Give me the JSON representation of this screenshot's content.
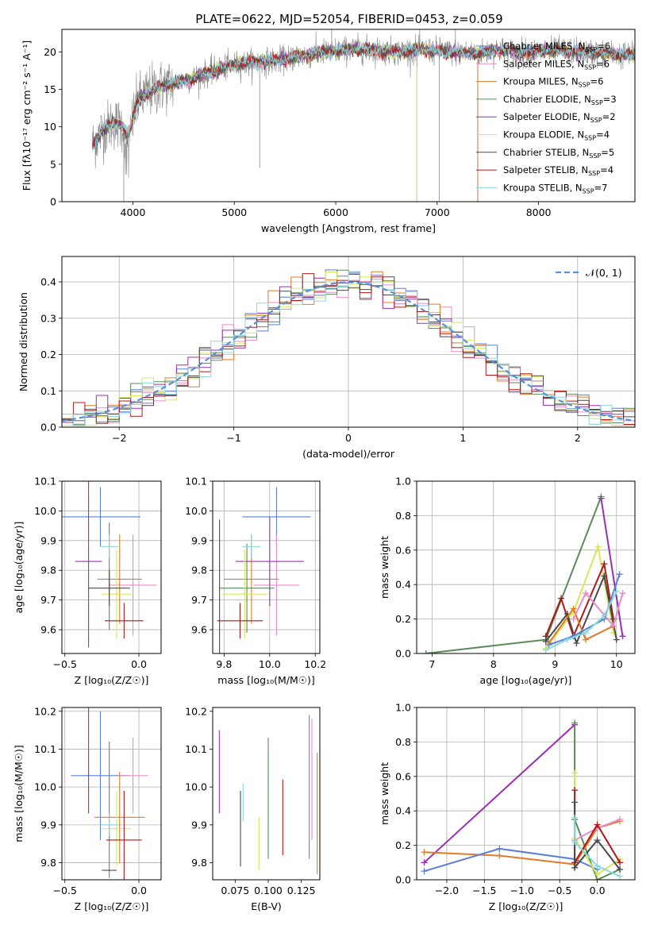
{
  "colors": {
    "chabrier_miles": "#5b7fd6",
    "salpeter_miles": "#e88cc8",
    "kroupa_miles": "#e07b28",
    "chabrier_elodie": "#5a8a5a",
    "salpeter_elodie": "#9a2eb5",
    "kroupa_elodie": "#d7e85a",
    "chabrier_stelib": "#4a4a4a",
    "salpeter_stelib": "#b01818",
    "kroupa_stelib": "#8ad8dc",
    "data_spectrum": "#888888",
    "normal_curve": "#5b8fd6",
    "grid": "#b0b0b0"
  },
  "figure": {
    "title": "PLATE=0622, MJD=52054, FIBERID=0453, z=0.059"
  },
  "chart_data": [
    {
      "id": "spectrum",
      "type": "line",
      "title": "PLATE=0622, MJD=52054, FIBERID=0453, z=0.059",
      "xlabel": "wavelength [Angstrom, rest frame]",
      "ylabel": "Flux [fλ10⁻¹⁷ erg cm⁻² s⁻¹ A⁻¹]",
      "xlim": [
        3300,
        8950
      ],
      "ylim": [
        0,
        23
      ],
      "xticks": [
        4000,
        5000,
        6000,
        7000,
        8000
      ],
      "yticks": [
        0,
        5,
        10,
        15,
        20
      ],
      "grid": false,
      "legend_position": "right",
      "continuum": {
        "x": [
          3600,
          3700,
          3800,
          3900,
          3950,
          4050,
          4200,
          4400,
          4600,
          4800,
          5000,
          5200,
          5400,
          5600,
          5800,
          6000,
          6200,
          6400,
          6600,
          6800,
          7000,
          7200,
          7400,
          7600,
          7800,
          8000,
          8200,
          8400,
          8600,
          8800,
          8950
        ],
        "y": [
          7.5,
          9.5,
          10.5,
          10.2,
          8.5,
          13.5,
          15.0,
          15.8,
          16.5,
          17.5,
          18.3,
          18.6,
          18.8,
          19.3,
          19.8,
          20.1,
          20.4,
          20.2,
          20.0,
          20.3,
          20.1,
          19.9,
          19.8,
          20.3,
          19.9,
          20.0,
          20.2,
          20.0,
          19.8,
          19.6,
          19.5
        ]
      },
      "legend": [
        {
          "label": "Chabrier MILES, N",
          "nssp": "6",
          "color_key": "chabrier_miles"
        },
        {
          "label": "Salpeter MILES, N",
          "nssp": "6",
          "color_key": "salpeter_miles"
        },
        {
          "label": "Kroupa MILES, N",
          "nssp": "6",
          "color_key": "kroupa_miles"
        },
        {
          "label": "Chabrier ELODIE, N",
          "nssp": "3",
          "color_key": "chabrier_elodie"
        },
        {
          "label": "Salpeter ELODIE, N",
          "nssp": "2",
          "color_key": "salpeter_elodie"
        },
        {
          "label": "Kroupa ELODIE, N",
          "nssp": "4",
          "color_key": "kroupa_elodie"
        },
        {
          "label": "Chabrier STELIB, N",
          "nssp": "5",
          "color_key": "chabrier_stelib"
        },
        {
          "label": "Salpeter STELIB, N",
          "nssp": "4",
          "color_key": "salpeter_stelib"
        },
        {
          "label": "Kroupa STELIB, N",
          "nssp": "7",
          "color_key": "kroupa_stelib"
        }
      ],
      "legend_subscript": "SSP"
    },
    {
      "id": "residuals",
      "type": "histogram",
      "xlabel": "(data-model)/error",
      "ylabel": "Normed distribution",
      "xlim": [
        -2.5,
        2.5
      ],
      "ylim": [
        0,
        0.47
      ],
      "xticks": [
        -2,
        -1,
        0,
        1,
        2
      ],
      "yticks": [
        0.0,
        0.1,
        0.2,
        0.3,
        0.4
      ],
      "grid": true,
      "legend": [
        {
          "label": "𝒩(0, 1)",
          "color_key": "normal_curve",
          "style": "dashed"
        }
      ],
      "legend_position": "top-right",
      "bin_width": 0.1
    },
    {
      "id": "age_vs_Z",
      "type": "scatter",
      "xlabel": "Z [log₁₀(Z/Z☉)]",
      "ylabel": "age  [log₁₀(age/yr)]",
      "xlim": [
        -0.52,
        0.15
      ],
      "ylim": [
        9.52,
        10.1
      ],
      "xticks": [
        -0.5,
        0.0
      ],
      "yticks": [
        9.6,
        9.7,
        9.8,
        9.9,
        10.0,
        10.1
      ],
      "grid": true,
      "points": [
        {
          "color_key": "chabrier_miles",
          "x": -0.26,
          "y": 9.98,
          "xerr": 0.27,
          "yerr": 0.1
        },
        {
          "color_key": "salpeter_miles",
          "x": -0.04,
          "y": 9.75,
          "xerr": 0.16,
          "yerr": 0.17
        },
        {
          "color_key": "kroupa_miles",
          "x": -0.13,
          "y": 9.77,
          "xerr": 0.15,
          "yerr": 0.15
        },
        {
          "color_key": "chabrier_elodie",
          "x": -0.2,
          "y": 9.78,
          "xerr": 0.0,
          "yerr": 0.18
        },
        {
          "color_key": "salpeter_elodie",
          "x": -0.34,
          "y": 9.83,
          "xerr": 0.09,
          "yerr": 0.29
        },
        {
          "color_key": "kroupa_elodie",
          "x": -0.15,
          "y": 9.72,
          "xerr": 0.1,
          "yerr": 0.15
        },
        {
          "color_key": "chabrier_stelib",
          "x": -0.2,
          "y": 9.74,
          "xerr": 0.14,
          "yerr": 0.06
        },
        {
          "color_key": "salpeter_stelib",
          "x": -0.1,
          "y": 9.63,
          "xerr": 0.13,
          "yerr": 0.06
        },
        {
          "color_key": "kroupa_stelib",
          "x": -0.2,
          "y": 9.88,
          "xerr": 0.06,
          "yerr": 0.04
        }
      ]
    },
    {
      "id": "age_vs_mass",
      "type": "scatter",
      "xlabel": "mass [log₁₀(M/M☉)]",
      "ylabel": "",
      "xlim": [
        9.75,
        10.22
      ],
      "ylim": [
        9.52,
        10.1
      ],
      "xticks": [
        9.8,
        10.0,
        10.2
      ],
      "yticks": [
        9.6,
        9.7,
        9.8,
        9.9,
        10.0,
        10.1
      ],
      "grid": true,
      "points": [
        {
          "color_key": "chabrier_miles",
          "x": 10.03,
          "y": 9.98,
          "xerr": 0.15,
          "yerr": 0.1
        },
        {
          "color_key": "salpeter_miles",
          "x": 10.03,
          "y": 9.75,
          "xerr": 0.1,
          "yerr": 0.17
        },
        {
          "color_key": "kroupa_miles",
          "x": 9.92,
          "y": 9.77,
          "xerr": 0.12,
          "yerr": 0.15
        },
        {
          "color_key": "chabrier_elodie",
          "x": 9.9,
          "y": 9.74,
          "xerr": 0.12,
          "yerr": 0.15
        },
        {
          "color_key": "salpeter_elodie",
          "x": 10.0,
          "y": 9.83,
          "xerr": 0.15,
          "yerr": 0.15
        },
        {
          "color_key": "kroupa_elodie",
          "x": 9.89,
          "y": 9.72,
          "xerr": 0.1,
          "yerr": 0.15
        },
        {
          "color_key": "chabrier_stelib",
          "x": 9.78,
          "y": 9.67,
          "xerr": 0.0,
          "yerr": 0.3
        },
        {
          "color_key": "salpeter_stelib",
          "x": 9.87,
          "y": 9.63,
          "xerr": 0.1,
          "yerr": 0.06
        },
        {
          "color_key": "kroupa_stelib",
          "x": 9.92,
          "y": 9.88,
          "xerr": 0.04,
          "yerr": 0.04
        }
      ]
    },
    {
      "id": "weight_vs_age",
      "type": "line",
      "xlabel": "age  [log₁₀(age/yr)]",
      "ylabel": "mass weight",
      "xlim": [
        6.75,
        10.3
      ],
      "ylim": [
        0,
        1.0
      ],
      "xticks": [
        7,
        8,
        9,
        10
      ],
      "yticks": [
        0.0,
        0.2,
        0.4,
        0.6,
        0.8,
        1.0
      ],
      "grid": true,
      "series": [
        {
          "color_key": "chabrier_elodie",
          "x": [
            6.9,
            8.85,
            9.75
          ],
          "y": [
            0.0,
            0.08,
            0.91
          ]
        },
        {
          "color_key": "salpeter_elodie",
          "x": [
            9.75,
            10.1
          ],
          "y": [
            0.9,
            0.1
          ]
        },
        {
          "color_key": "kroupa_elodie",
          "x": [
            8.85,
            9.3,
            9.7,
            9.95
          ],
          "y": [
            0.03,
            0.24,
            0.62,
            0.12
          ]
        },
        {
          "color_key": "salpeter_stelib",
          "x": [
            8.85,
            9.1,
            9.3,
            9.8,
            9.95
          ],
          "y": [
            0.1,
            0.32,
            0.1,
            0.52,
            0.2
          ]
        },
        {
          "color_key": "chabrier_stelib",
          "x": [
            8.85,
            9.2,
            9.35,
            9.8,
            10.0
          ],
          "y": [
            0.07,
            0.23,
            0.06,
            0.45,
            0.08
          ]
        },
        {
          "color_key": "kroupa_miles",
          "x": [
            8.9,
            9.3,
            9.5,
            9.95
          ],
          "y": [
            0.06,
            0.26,
            0.08,
            0.16
          ]
        },
        {
          "color_key": "salpeter_miles",
          "x": [
            9.3,
            9.5,
            9.95,
            10.1
          ],
          "y": [
            0.2,
            0.35,
            0.16,
            0.35
          ]
        },
        {
          "color_key": "chabrier_miles",
          "x": [
            8.9,
            9.3,
            9.8,
            10.05
          ],
          "y": [
            0.05,
            0.1,
            0.2,
            0.46
          ]
        },
        {
          "color_key": "kroupa_stelib",
          "x": [
            8.85,
            9.2,
            9.5,
            9.8,
            10.0
          ],
          "y": [
            0.02,
            0.08,
            0.12,
            0.22,
            0.36
          ]
        }
      ]
    },
    {
      "id": "mass_vs_Z",
      "type": "scatter",
      "xlabel": "Z [log₁₀(Z/Z☉)]",
      "ylabel": "mass [log₁₀(M/M☉)]",
      "xlim": [
        -0.52,
        0.15
      ],
      "ylim": [
        9.755,
        10.21
      ],
      "xticks": [
        -0.5,
        0.0
      ],
      "yticks": [
        9.8,
        9.9,
        10.0,
        10.1,
        10.2
      ],
      "grid": true,
      "points": [
        {
          "color_key": "chabrier_miles",
          "x": -0.26,
          "y": 10.03,
          "xerr": 0.2,
          "yerr": 0.17
        },
        {
          "color_key": "salpeter_miles",
          "x": -0.04,
          "y": 10.03,
          "xerr": 0.1,
          "yerr": 0.1
        },
        {
          "color_key": "kroupa_miles",
          "x": -0.13,
          "y": 9.92,
          "xerr": 0.17,
          "yerr": 0.12
        },
        {
          "color_key": "chabrier_elodie",
          "x": -0.2,
          "y": 9.94,
          "xerr": 0.0,
          "yerr": 0.18
        },
        {
          "color_key": "salpeter_elodie",
          "x": -0.34,
          "y": 10.15,
          "xerr": 0.0,
          "yerr": 0.22
        },
        {
          "color_key": "kroupa_elodie",
          "x": -0.15,
          "y": 9.89,
          "xerr": 0.1,
          "yerr": 0.1
        },
        {
          "color_key": "chabrier_stelib",
          "x": -0.2,
          "y": 9.78,
          "xerr": 0.05,
          "yerr": 0.0
        },
        {
          "color_key": "salpeter_stelib",
          "x": -0.1,
          "y": 9.86,
          "xerr": 0.12,
          "yerr": 0.13
        },
        {
          "color_key": "kroupa_stelib",
          "x": -0.2,
          "y": 9.9,
          "xerr": 0.06,
          "yerr": 0.03
        }
      ]
    },
    {
      "id": "mass_vs_ebv",
      "type": "scatter",
      "xlabel": "E(B-V)",
      "ylabel": "",
      "xlim": [
        0.058,
        0.139
      ],
      "ylim": [
        9.755,
        10.21
      ],
      "xticks": [
        0.075,
        0.1,
        0.125
      ],
      "xtick_labels": [
        "0.075",
        "0.100",
        "0.125"
      ],
      "yticks": [
        9.8,
        9.9,
        10.0,
        10.1,
        10.2
      ],
      "grid": false,
      "points": [
        {
          "color_key": "salpeter_elodie",
          "x": 0.063,
          "y": 10.04,
          "yerr": 0.11
        },
        {
          "color_key": "chabrier_stelib",
          "x": 0.079,
          "y": 9.89,
          "yerr": 0.1
        },
        {
          "color_key": "kroupa_stelib",
          "x": 0.081,
          "y": 9.96,
          "yerr": 0.05
        },
        {
          "color_key": "kroupa_elodie",
          "x": 0.093,
          "y": 9.85,
          "yerr": 0.07
        },
        {
          "color_key": "chabrier_elodie",
          "x": 0.1,
          "y": 9.97,
          "yerr": 0.16
        },
        {
          "color_key": "salpeter_stelib",
          "x": 0.111,
          "y": 9.92,
          "yerr": 0.1
        },
        {
          "color_key": "chabrier_miles",
          "x": 0.131,
          "y": 10.0,
          "yerr": 0.19
        },
        {
          "color_key": "salpeter_miles",
          "x": 0.133,
          "y": 10.02,
          "yerr": 0.16
        },
        {
          "color_key": "kroupa_miles",
          "x": 0.137,
          "y": 9.93,
          "yerr": 0.16
        }
      ]
    },
    {
      "id": "weight_vs_Z",
      "type": "line",
      "xlabel": "Z [log₁₀(Z/Z☉)]",
      "ylabel": "mass weight",
      "xlim": [
        -2.4,
        0.5
      ],
      "ylim": [
        0,
        1.0
      ],
      "xticks": [
        -2.0,
        -1.5,
        -1.0,
        -0.5,
        0.0
      ],
      "yticks": [
        0.0,
        0.2,
        0.4,
        0.6,
        0.8,
        1.0
      ],
      "grid": true,
      "series": [
        {
          "color_key": "salpeter_elodie",
          "x": [
            -2.3,
            -0.3
          ],
          "y": [
            0.1,
            0.9
          ]
        },
        {
          "color_key": "chabrier_elodie",
          "x": [
            -0.3,
            -0.3,
            0.0,
            0.3
          ],
          "y": [
            0.91,
            0.35,
            0.0,
            0.06
          ]
        },
        {
          "color_key": "kroupa_miles",
          "x": [
            -2.3,
            -1.3,
            -0.3,
            0.0,
            0.3
          ],
          "y": [
            0.16,
            0.14,
            0.09,
            0.3,
            0.34
          ]
        },
        {
          "color_key": "chabrier_miles",
          "x": [
            -2.3,
            -1.3,
            -0.3,
            0.0
          ],
          "y": [
            0.05,
            0.18,
            0.12,
            0.06
          ]
        },
        {
          "color_key": "salpeter_miles",
          "x": [
            -0.3,
            0.0,
            0.3
          ],
          "y": [
            0.23,
            0.3,
            0.35
          ]
        },
        {
          "color_key": "kroupa_elodie",
          "x": [
            -0.3,
            -0.3,
            0.0,
            0.3
          ],
          "y": [
            0.62,
            0.24,
            0.03,
            0.12
          ]
        },
        {
          "color_key": "salpeter_stelib",
          "x": [
            -0.3,
            -0.3,
            0.0,
            0.3
          ],
          "y": [
            0.52,
            0.1,
            0.32,
            0.1
          ]
        },
        {
          "color_key": "chabrier_stelib",
          "x": [
            -0.3,
            -0.3,
            0.0,
            0.3
          ],
          "y": [
            0.45,
            0.07,
            0.23,
            0.06
          ]
        },
        {
          "color_key": "kroupa_stelib",
          "x": [
            -0.3,
            -0.3,
            0.0,
            0.3
          ],
          "y": [
            0.36,
            0.22,
            0.08,
            0.02
          ]
        }
      ]
    }
  ]
}
